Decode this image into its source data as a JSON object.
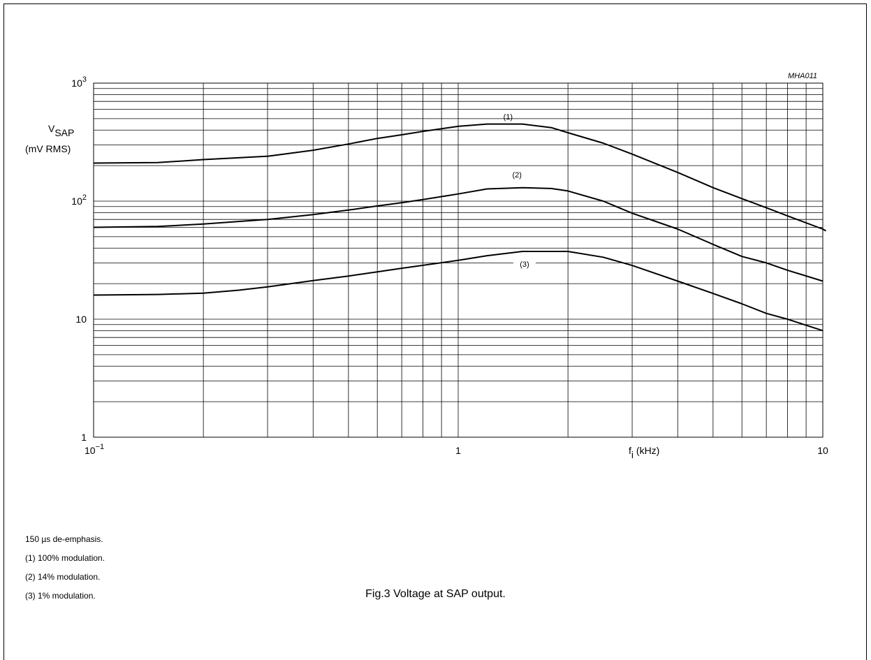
{
  "figure_code": "MHA011",
  "caption": "Fig.3  Voltage at SAP output.",
  "notes": [
    "150 µs de-emphasis.",
    "(1)  100% modulation.",
    "(2)  14% modulation.",
    "(3)  1% modulation."
  ],
  "chart_data": {
    "type": "line",
    "title": "",
    "xlabel": {
      "main": "f",
      "sub": "i",
      "unit": " (kHz)"
    },
    "ylabel": {
      "main": "V",
      "sub": "SAP",
      "unit": "(mV RMS)"
    },
    "x_scale": "log",
    "y_scale": "log",
    "xlim": [
      0.1,
      10
    ],
    "ylim": [
      1,
      1000
    ],
    "grid": true,
    "x_ticks": [
      {
        "value": 0.1,
        "base": "10",
        "exp": "−1"
      },
      {
        "value": 1,
        "base": "1",
        "exp": ""
      },
      {
        "value": 10,
        "base": "10",
        "exp": ""
      }
    ],
    "y_ticks": [
      {
        "value": 1,
        "base": "1",
        "exp": ""
      },
      {
        "value": 10,
        "base": "10",
        "exp": ""
      },
      {
        "value": 100,
        "base": "10",
        "exp": "2"
      },
      {
        "value": 1000,
        "base": "10",
        "exp": "3"
      }
    ],
    "series": [
      {
        "name": "(1)",
        "label_at": [
          1.37,
          520
        ],
        "x": [
          0.1,
          0.15,
          0.2,
          0.3,
          0.4,
          0.5,
          0.6,
          0.7,
          0.8,
          1.0,
          1.2,
          1.5,
          1.8,
          2.0,
          2.5,
          3.0,
          4.0,
          5.0,
          6.0,
          7.0,
          8.0,
          10.0,
          10.2
        ],
        "y": [
          210,
          212,
          225,
          240,
          270,
          305,
          340,
          365,
          390,
          430,
          450,
          450,
          420,
          380,
          310,
          250,
          175,
          130,
          105,
          88,
          75,
          58,
          56
        ]
      },
      {
        "name": "(2)",
        "label_at": [
          1.45,
          168
        ],
        "x": [
          0.1,
          0.15,
          0.2,
          0.3,
          0.4,
          0.5,
          0.6,
          0.7,
          0.8,
          1.0,
          1.2,
          1.5,
          1.8,
          2.0,
          2.5,
          3.0,
          4.0,
          5.0,
          6.0,
          7.0,
          8.0,
          10.0
        ],
        "y": [
          60,
          61,
          64,
          70,
          77,
          84,
          91,
          97,
          103,
          115,
          127,
          130,
          128,
          122,
          100,
          79,
          58,
          43,
          34,
          30,
          26,
          21
        ]
      },
      {
        "name": "(3)",
        "label_at": [
          1.52,
          29.3
        ],
        "x": [
          0.1,
          0.15,
          0.2,
          0.25,
          0.3,
          0.4,
          0.5,
          0.6,
          0.7,
          0.8,
          1.0,
          1.2,
          1.5,
          2.0,
          2.5,
          3.0,
          4.0,
          5.0,
          6.0,
          7.0,
          8.0,
          10.0
        ],
        "y": [
          16,
          16.2,
          16.6,
          17.6,
          18.8,
          21.2,
          23.2,
          25.2,
          27.0,
          28.6,
          31.5,
          34.5,
          37.5,
          37.5,
          33.5,
          28.5,
          21.0,
          16.5,
          13.5,
          11.2,
          10.0,
          8.0
        ]
      }
    ]
  }
}
